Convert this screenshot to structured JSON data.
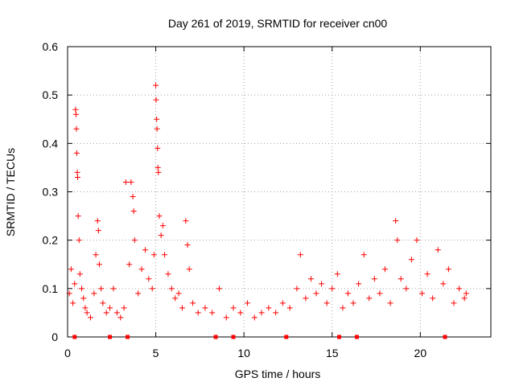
{
  "chart_data": {
    "type": "scatter",
    "title": "Day 261 of 2019, SRMTID for receiver cn00",
    "xlabel": "GPS time / hours",
    "ylabel": "SRMTID / TECUs",
    "xlim": [
      0,
      24
    ],
    "ylim": [
      0,
      0.6
    ],
    "xticks": [
      0,
      5,
      10,
      15,
      20
    ],
    "yticks": [
      0,
      0.1,
      0.2,
      0.3,
      0.4,
      0.5,
      0.6
    ],
    "grid": true,
    "marker": "plus",
    "color": "#ff0000",
    "series": [
      {
        "name": "SRMTID",
        "points": [
          [
            0.1,
            0.09
          ],
          [
            0.2,
            0.14
          ],
          [
            0.3,
            0.07
          ],
          [
            0.4,
            0.11
          ],
          [
            0.45,
            0.47
          ],
          [
            0.48,
            0.46
          ],
          [
            0.5,
            0.43
          ],
          [
            0.52,
            0.38
          ],
          [
            0.55,
            0.34
          ],
          [
            0.57,
            0.33
          ],
          [
            0.6,
            0.25
          ],
          [
            0.65,
            0.2
          ],
          [
            0.7,
            0.13
          ],
          [
            0.8,
            0.1
          ],
          [
            0.9,
            0.08
          ],
          [
            1.0,
            0.06
          ],
          [
            1.1,
            0.05
          ],
          [
            1.3,
            0.04
          ],
          [
            1.5,
            0.09
          ],
          [
            1.6,
            0.17
          ],
          [
            1.7,
            0.24
          ],
          [
            1.75,
            0.22
          ],
          [
            1.8,
            0.15
          ],
          [
            1.9,
            0.1
          ],
          [
            2.0,
            0.07
          ],
          [
            2.2,
            0.05
          ],
          [
            2.4,
            0.06
          ],
          [
            2.6,
            0.1
          ],
          [
            2.8,
            0.05
          ],
          [
            3.0,
            0.04
          ],
          [
            3.2,
            0.06
          ],
          [
            3.3,
            0.32
          ],
          [
            3.5,
            0.15
          ],
          [
            3.6,
            0.32
          ],
          [
            3.7,
            0.29
          ],
          [
            3.75,
            0.26
          ],
          [
            3.8,
            0.2
          ],
          [
            4.0,
            0.09
          ],
          [
            4.2,
            0.14
          ],
          [
            4.4,
            0.18
          ],
          [
            4.6,
            0.12
          ],
          [
            4.8,
            0.1
          ],
          [
            4.9,
            0.17
          ],
          [
            5.0,
            0.52
          ],
          [
            5.02,
            0.49
          ],
          [
            5.05,
            0.45
          ],
          [
            5.07,
            0.43
          ],
          [
            5.1,
            0.39
          ],
          [
            5.12,
            0.35
          ],
          [
            5.15,
            0.34
          ],
          [
            5.2,
            0.25
          ],
          [
            5.3,
            0.21
          ],
          [
            5.4,
            0.23
          ],
          [
            5.5,
            0.17
          ],
          [
            5.7,
            0.13
          ],
          [
            5.9,
            0.1
          ],
          [
            6.1,
            0.08
          ],
          [
            6.3,
            0.09
          ],
          [
            6.5,
            0.06
          ],
          [
            6.7,
            0.24
          ],
          [
            6.8,
            0.19
          ],
          [
            6.9,
            0.14
          ],
          [
            7.1,
            0.07
          ],
          [
            7.4,
            0.05
          ],
          [
            7.8,
            0.06
          ],
          [
            8.2,
            0.05
          ],
          [
            8.6,
            0.1
          ],
          [
            9.0,
            0.04
          ],
          [
            9.4,
            0.06
          ],
          [
            9.8,
            0.05
          ],
          [
            10.2,
            0.07
          ],
          [
            10.6,
            0.04
          ],
          [
            11.0,
            0.05
          ],
          [
            11.4,
            0.06
          ],
          [
            11.8,
            0.05
          ],
          [
            12.2,
            0.07
          ],
          [
            12.6,
            0.06
          ],
          [
            13.0,
            0.1
          ],
          [
            13.2,
            0.17
          ],
          [
            13.5,
            0.08
          ],
          [
            13.8,
            0.12
          ],
          [
            14.1,
            0.09
          ],
          [
            14.4,
            0.11
          ],
          [
            14.7,
            0.07
          ],
          [
            15.0,
            0.1
          ],
          [
            15.3,
            0.13
          ],
          [
            15.6,
            0.06
          ],
          [
            15.9,
            0.09
          ],
          [
            16.2,
            0.07
          ],
          [
            16.5,
            0.11
          ],
          [
            16.8,
            0.17
          ],
          [
            17.1,
            0.08
          ],
          [
            17.4,
            0.12
          ],
          [
            17.7,
            0.09
          ],
          [
            18.0,
            0.14
          ],
          [
            18.3,
            0.07
          ],
          [
            18.6,
            0.24
          ],
          [
            18.7,
            0.2
          ],
          [
            18.9,
            0.12
          ],
          [
            19.2,
            0.1
          ],
          [
            19.5,
            0.16
          ],
          [
            19.8,
            0.2
          ],
          [
            20.1,
            0.09
          ],
          [
            20.4,
            0.13
          ],
          [
            20.7,
            0.08
          ],
          [
            21.0,
            0.18
          ],
          [
            21.3,
            0.11
          ],
          [
            21.6,
            0.14
          ],
          [
            21.9,
            0.07
          ],
          [
            22.2,
            0.1
          ],
          [
            22.5,
            0.08
          ],
          [
            22.6,
            0.09
          ]
        ]
      }
    ],
    "axis_markers_x": [
      0.4,
      2.4,
      3.4,
      8.4,
      9.4,
      12.4,
      15.4,
      16.4,
      21.4
    ]
  }
}
